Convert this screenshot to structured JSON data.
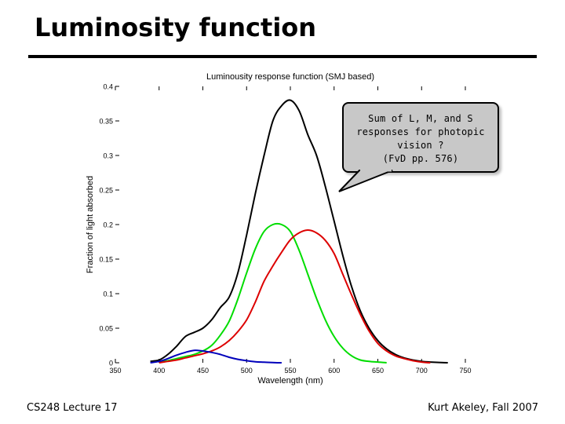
{
  "slide": {
    "title": "Luminosity function",
    "footer_left": "CS248 Lecture 17",
    "footer_right": "Kurt Akeley, Fall 2007"
  },
  "callout": {
    "lines": [
      "Sum of L, M, and S",
      "responses for photopic",
      "vision ?",
      "(FvD pp. 576)"
    ]
  },
  "chart_data": {
    "type": "line",
    "title": "Luminousity response function (SMJ based)",
    "xlabel": "Wavelength (nm)",
    "ylabel": "Fraction of light absorbed",
    "xlim": [
      350,
      750
    ],
    "ylim": [
      0,
      0.4
    ],
    "xticks": [
      350,
      400,
      450,
      500,
      550,
      600,
      650,
      700,
      750
    ],
    "yticks": [
      0,
      0.05,
      0.1,
      0.15,
      0.2,
      0.25,
      0.3,
      0.35,
      0.4
    ],
    "ytick_labels": [
      "0",
      "0.05",
      "0.1",
      "0.15",
      "0.2",
      "0.25",
      "0.3",
      "0.35",
      "0.4"
    ],
    "grid": false,
    "series": [
      {
        "color": "#000000",
        "x": [
          390,
          400,
          410,
          420,
          430,
          440,
          450,
          460,
          470,
          480,
          490,
          500,
          510,
          520,
          530,
          540,
          550,
          560,
          570,
          580,
          590,
          600,
          610,
          620,
          630,
          640,
          650,
          660,
          670,
          680,
          690,
          700,
          710,
          720,
          730
        ],
        "y": [
          0.002,
          0.004,
          0.012,
          0.024,
          0.038,
          0.044,
          0.05,
          0.062,
          0.08,
          0.095,
          0.13,
          0.185,
          0.245,
          0.3,
          0.35,
          0.372,
          0.38,
          0.365,
          0.33,
          0.3,
          0.255,
          0.205,
          0.155,
          0.11,
          0.075,
          0.05,
          0.032,
          0.02,
          0.012,
          0.007,
          0.004,
          0.002,
          0.001,
          0.0005,
          0.0
        ]
      },
      {
        "color": "#00dd00",
        "x": [
          400,
          410,
          420,
          430,
          440,
          450,
          460,
          470,
          480,
          490,
          500,
          510,
          520,
          530,
          540,
          550,
          560,
          570,
          580,
          590,
          600,
          610,
          620,
          630,
          640,
          650,
          660
        ],
        "y": [
          0.001,
          0.003,
          0.006,
          0.009,
          0.012,
          0.017,
          0.025,
          0.04,
          0.06,
          0.092,
          0.13,
          0.165,
          0.19,
          0.2,
          0.2,
          0.19,
          0.163,
          0.128,
          0.093,
          0.062,
          0.038,
          0.021,
          0.01,
          0.004,
          0.002,
          0.001,
          0.0
        ]
      },
      {
        "color": "#dd0000",
        "x": [
          400,
          410,
          420,
          430,
          440,
          450,
          460,
          470,
          480,
          490,
          500,
          510,
          520,
          530,
          540,
          550,
          560,
          570,
          580,
          590,
          600,
          610,
          620,
          630,
          640,
          650,
          660,
          670,
          680,
          690,
          700,
          710
        ],
        "y": [
          0.0,
          0.002,
          0.004,
          0.007,
          0.01,
          0.013,
          0.017,
          0.023,
          0.032,
          0.045,
          0.062,
          0.088,
          0.118,
          0.14,
          0.16,
          0.178,
          0.188,
          0.192,
          0.188,
          0.177,
          0.158,
          0.128,
          0.098,
          0.07,
          0.046,
          0.028,
          0.017,
          0.01,
          0.006,
          0.003,
          0.001,
          0.0
        ]
      },
      {
        "color": "#0000bb",
        "x": [
          390,
          400,
          410,
          420,
          430,
          440,
          450,
          460,
          470,
          480,
          490,
          500,
          510,
          520,
          530,
          540
        ],
        "y": [
          0.0,
          0.002,
          0.006,
          0.011,
          0.015,
          0.018,
          0.017,
          0.015,
          0.012,
          0.008,
          0.005,
          0.003,
          0.0015,
          0.0008,
          0.0003,
          0.0
        ]
      }
    ]
  }
}
